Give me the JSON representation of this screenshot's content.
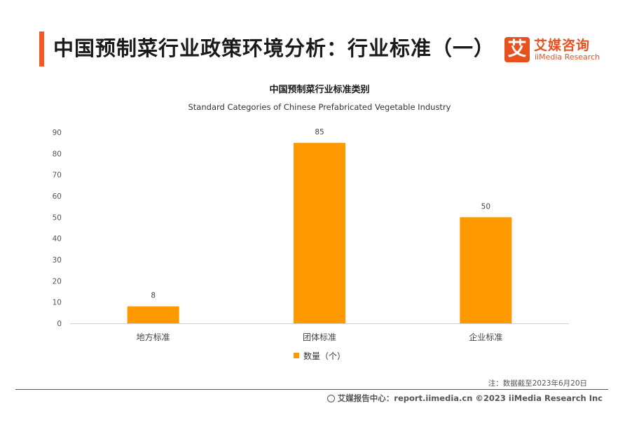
{
  "page": {
    "title": "中国预制菜行业政策环境分析：行业标准（一）",
    "note": "注：数据截至2023年6月20日",
    "footer": "艾媒报告中心：report.iimedia.cn ©2023 iiMedia Research Inc"
  },
  "logo": {
    "mark": "艾",
    "name_cn": "艾媒咨询",
    "name_en": "iiMedia Research"
  },
  "colors": {
    "accent": "#f15a24",
    "bar": "#ff9900"
  },
  "chart_data": {
    "type": "bar",
    "title": "中国预制菜行业标准类别",
    "subtitle": "Standard Categories of Chinese Prefabricated Vegetable Industry",
    "categories": [
      "地方标准",
      "团体标准",
      "企业标准"
    ],
    "series": [
      {
        "name": "数量（个）",
        "values": [
          8,
          85,
          50
        ]
      }
    ],
    "ylim": [
      0,
      90
    ],
    "yticks": [
      0,
      10,
      20,
      30,
      40,
      50,
      60,
      70,
      80,
      90
    ],
    "grid": false,
    "data_labels": true,
    "legend": "bottom-center"
  }
}
